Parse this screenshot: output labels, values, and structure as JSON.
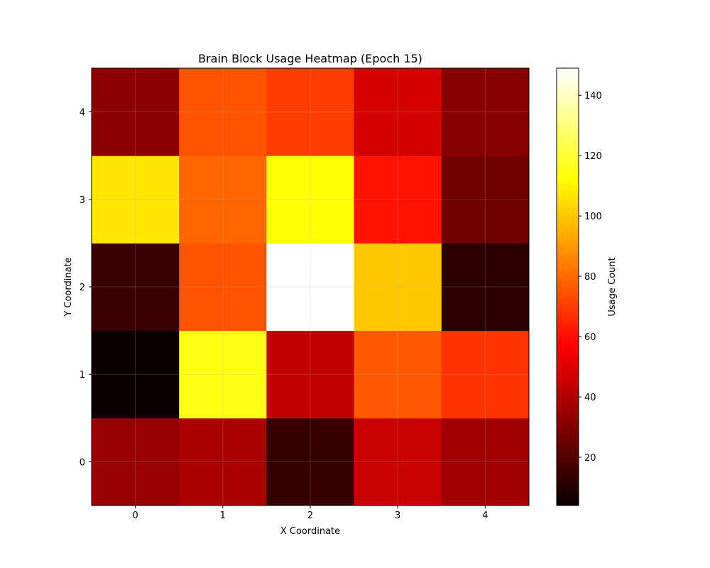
{
  "chart_data": {
    "type": "heatmap",
    "title": "Brain Block Usage Heatmap (Epoch 15)",
    "xlabel": "X Coordinate",
    "ylabel": "Y Coordinate",
    "x_ticks": [
      "0",
      "1",
      "2",
      "3",
      "4"
    ],
    "y_ticks": [
      "0",
      "1",
      "2",
      "3",
      "4"
    ],
    "colormap": "hot",
    "vmin": 4,
    "vmax": 149,
    "grid": true,
    "colorbar": {
      "label": "Usage Count",
      "ticks": [
        20,
        40,
        60,
        80,
        100,
        120,
        140
      ]
    },
    "rows": [
      {
        "y": 0,
        "values": [
          33,
          37,
          13,
          44,
          35
        ]
      },
      {
        "y": 1,
        "values": [
          4,
          115,
          42,
          76,
          68
        ]
      },
      {
        "y": 2,
        "values": [
          14,
          75,
          149,
          100,
          11
        ]
      },
      {
        "y": 3,
        "values": [
          107,
          79,
          113,
          61,
          25
        ]
      },
      {
        "y": 4,
        "values": [
          31,
          75,
          70,
          46,
          30
        ]
      }
    ]
  }
}
